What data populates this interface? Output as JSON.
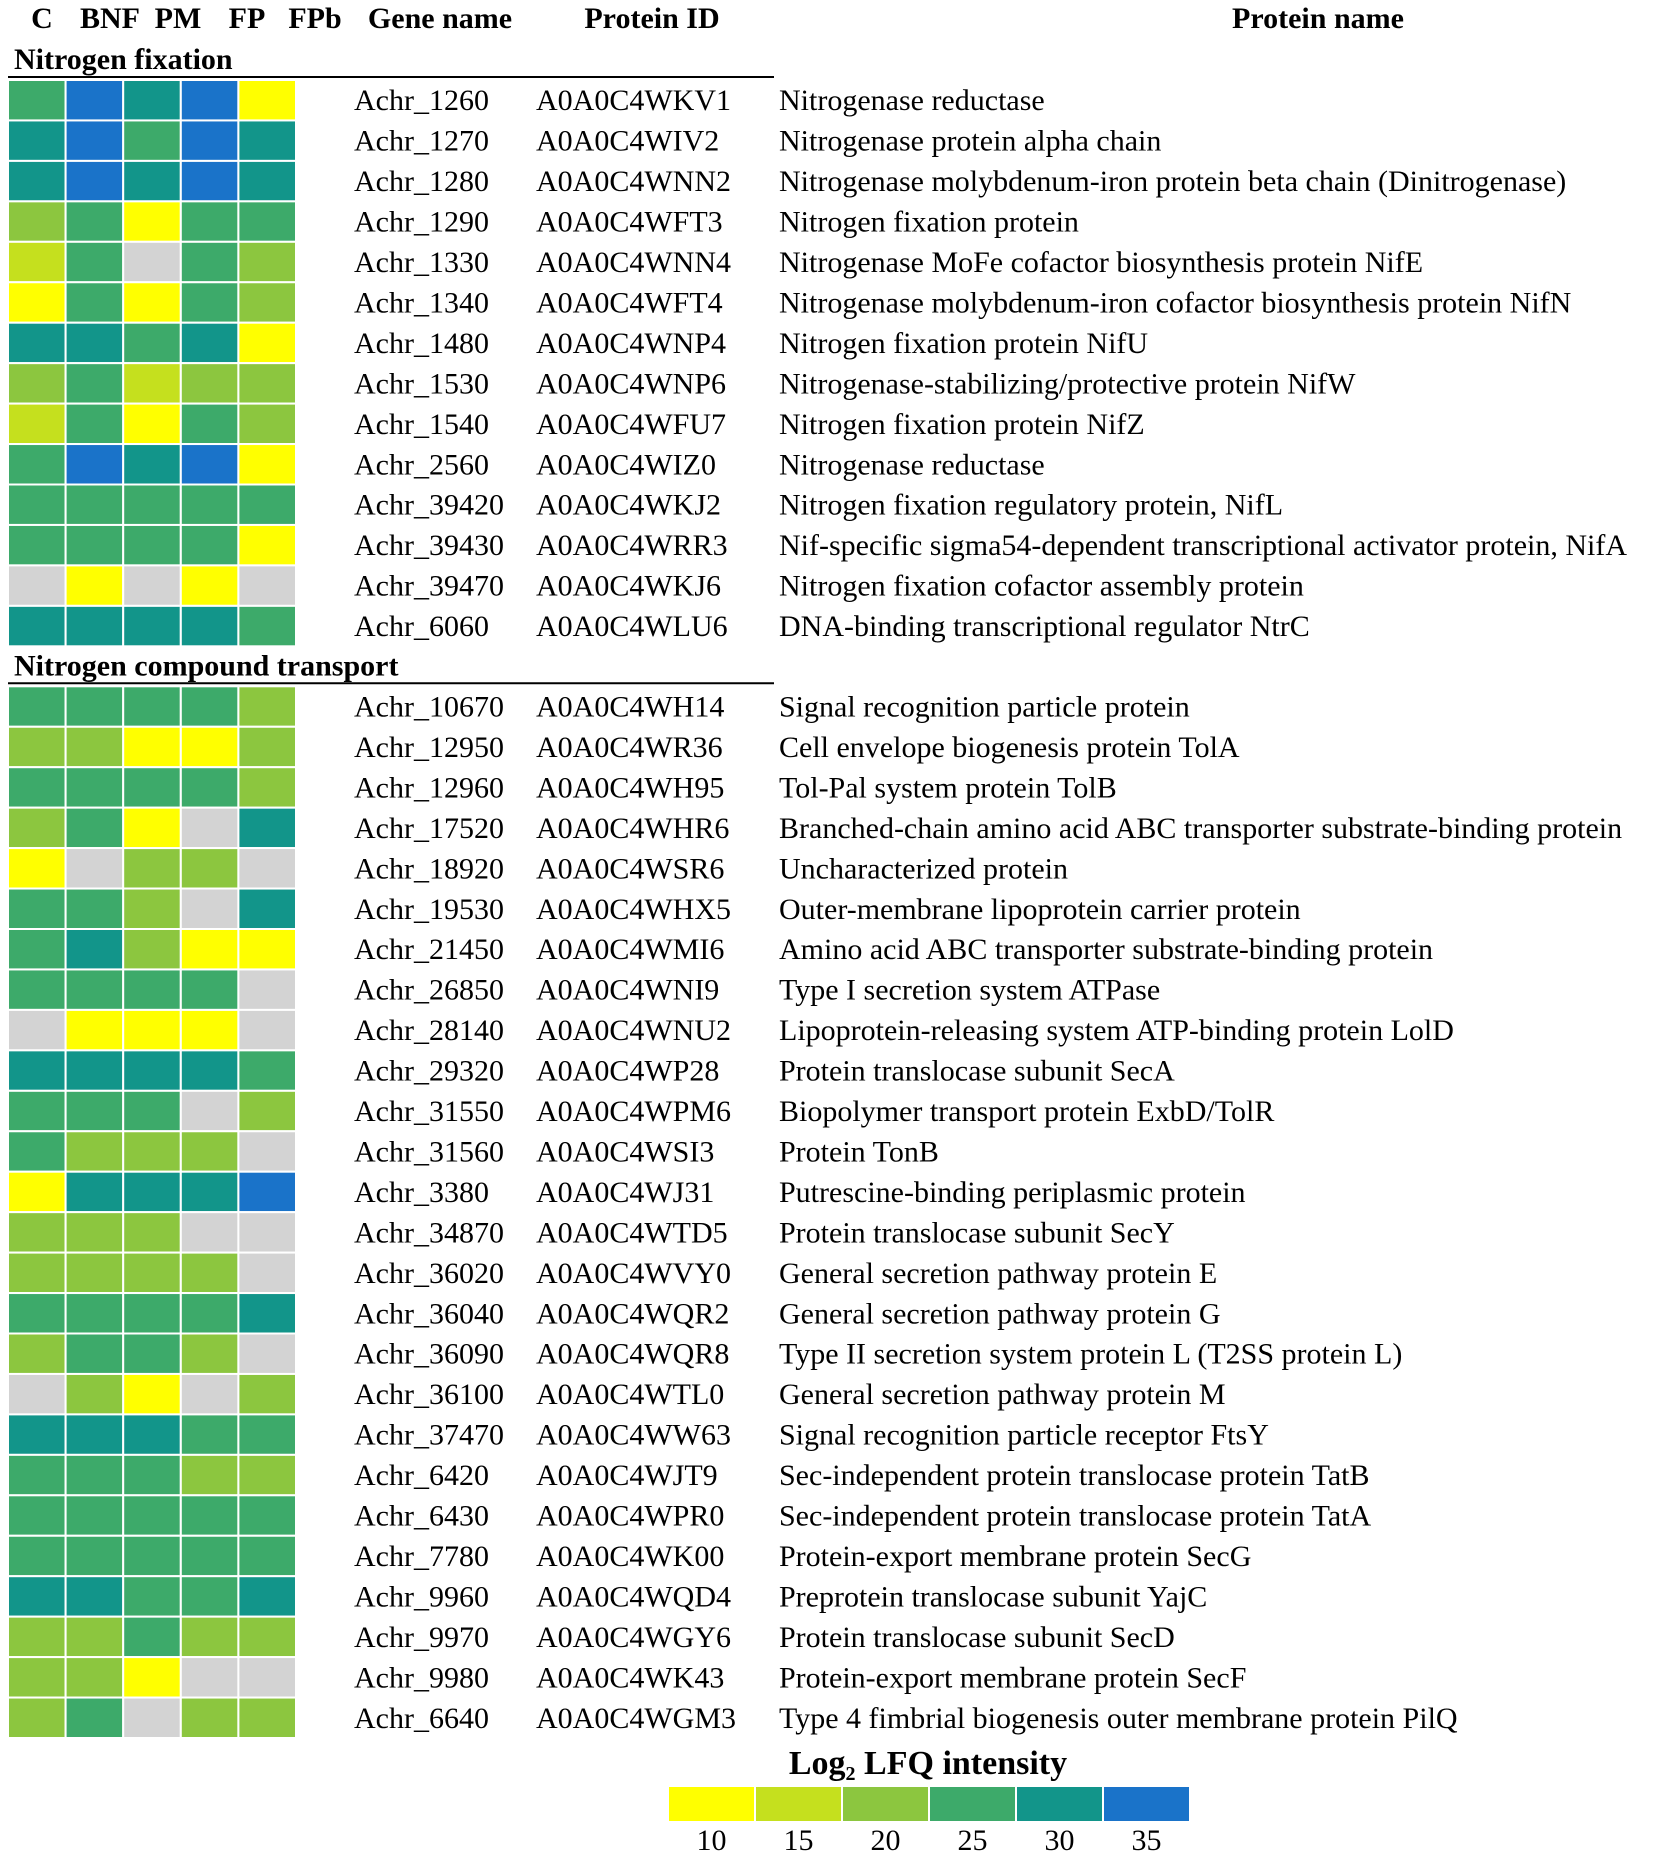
{
  "chart_data": {
    "type": "heatmap",
    "column_headers": {
      "samples": [
        "C",
        "BNF",
        "PM",
        "FP",
        "FPb"
      ],
      "gene": "Gene name",
      "protein_id": "Protein ID",
      "protein_name": "Protein name"
    },
    "value_unit": "Log2 LFQ intensity (approx.; null = not detected)",
    "sections": [
      {
        "title": "Nitrogen fixation",
        "rows": [
          {
            "gene": "Achr_1260",
            "protein_id": "A0A0C4WKV1",
            "protein_name": "Nitrogenase reductase",
            "values": [
              25,
              35,
              28,
              35,
              10
            ]
          },
          {
            "gene": "Achr_1270",
            "protein_id": "A0A0C4WIV2",
            "protein_name": "Nitrogenase protein alpha chain",
            "values": [
              28,
              35,
              27,
              35,
              30
            ]
          },
          {
            "gene": "Achr_1280",
            "protein_id": "A0A0C4WNN2",
            "protein_name": "Nitrogenase molybdenum-iron protein beta chain (Dinitrogenase)",
            "values": [
              29,
              35,
              29,
              35,
              30
            ]
          },
          {
            "gene": "Achr_1290",
            "protein_id": "A0A0C4WFT3",
            "protein_name": "Nitrogen fixation protein",
            "values": [
              21,
              23,
              10,
              23,
              26
            ]
          },
          {
            "gene": "Achr_1330",
            "protein_id": "A0A0C4WNN4",
            "protein_name": "Nitrogenase MoFe cofactor biosynthesis protein NifE",
            "values": [
              17,
              24,
              null,
              23,
              21
            ]
          },
          {
            "gene": "Achr_1340",
            "protein_id": "A0A0C4WFT4",
            "protein_name": "Nitrogenase molybdenum-iron cofactor biosynthesis protein NifN",
            "values": [
              10,
              24,
              10,
              24,
              21
            ]
          },
          {
            "gene": "Achr_1480",
            "protein_id": "A0A0C4WNP4",
            "protein_name": "Nitrogen fixation protein NifU",
            "values": [
              29,
              30,
              26,
              31,
              10
            ]
          },
          {
            "gene": "Achr_1530",
            "protein_id": "A0A0C4WNP6",
            "protein_name": "Nitrogenase-stabilizing/protective protein NifW",
            "values": [
              21,
              23,
              17,
              22,
              21
            ]
          },
          {
            "gene": "Achr_1540",
            "protein_id": "A0A0C4WFU7",
            "protein_name": "Nitrogen fixation protein NifZ",
            "values": [
              15,
              24,
              10,
              24,
              21
            ]
          },
          {
            "gene": "Achr_2560",
            "protein_id": "A0A0C4WIZ0",
            "protein_name": "Nitrogenase reductase",
            "values": [
              25,
              35,
              29,
              35,
              10
            ]
          },
          {
            "gene": "Achr_39420",
            "protein_id": "A0A0C4WKJ2",
            "protein_name": "Nitrogen fixation regulatory protein, NifL",
            "values": [
              27,
              27,
              27,
              27,
              24
            ]
          },
          {
            "gene": "Achr_39430",
            "protein_id": "A0A0C4WRR3",
            "protein_name": "Nif-specific sigma54-dependent transcriptional activator protein, NifA",
            "values": [
              24,
              24,
              24,
              24,
              10
            ]
          },
          {
            "gene": "Achr_39470",
            "protein_id": "A0A0C4WKJ6",
            "protein_name": "Nitrogen fixation cofactor assembly protein",
            "values": [
              null,
              10,
              null,
              10,
              null
            ]
          },
          {
            "gene": "Achr_6060",
            "protein_id": "A0A0C4WLU6",
            "protein_name": "DNA-binding transcriptional regulator NtrC",
            "values": [
              28,
              28,
              28,
              28,
              27
            ]
          }
        ]
      },
      {
        "title": "Nitrogen compound transport",
        "rows": [
          {
            "gene": "Achr_10670",
            "protein_id": "A0A0C4WH14",
            "protein_name": "Signal recognition particle protein",
            "values": [
              27,
              27,
              27,
              26,
              22
            ]
          },
          {
            "gene": "Achr_12950",
            "protein_id": "A0A0C4WR36",
            "protein_name": "Cell envelope biogenesis protein TolA",
            "values": [
              20,
              21,
              10,
              10,
              21
            ]
          },
          {
            "gene": "Achr_12960",
            "protein_id": "A0A0C4WH95",
            "protein_name": "Tol-Pal system protein TolB",
            "values": [
              26,
              27,
              24,
              24,
              22
            ]
          },
          {
            "gene": "Achr_17520",
            "protein_id": "A0A0C4WHR6",
            "protein_name": "Branched-chain amino acid ABC transporter substrate-binding protein",
            "values": [
              21,
              24,
              10,
              null,
              30
            ]
          },
          {
            "gene": "Achr_18920",
            "protein_id": "A0A0C4WSR6",
            "protein_name": "Uncharacterized protein",
            "values": [
              10,
              null,
              21,
              21,
              null
            ]
          },
          {
            "gene": "Achr_19530",
            "protein_id": "A0A0C4WHX5",
            "protein_name": "Outer-membrane lipoprotein carrier protein",
            "values": [
              25,
              23,
              22,
              null,
              28
            ]
          },
          {
            "gene": "Achr_21450",
            "protein_id": "A0A0C4WMI6",
            "protein_name": "Amino acid ABC transporter substrate-binding protein",
            "values": [
              24,
              30,
              21,
              10,
              10
            ]
          },
          {
            "gene": "Achr_26850",
            "protein_id": "A0A0C4WNI9",
            "protein_name": "Type I secretion system ATPase",
            "values": [
              23,
              23,
              23,
              24,
              null
            ]
          },
          {
            "gene": "Achr_28140",
            "protein_id": "A0A0C4WNU2",
            "protein_name": "Lipoprotein-releasing system ATP-binding protein LolD",
            "values": [
              null,
              10,
              10,
              10,
              null
            ]
          },
          {
            "gene": "Achr_29320",
            "protein_id": "A0A0C4WP28",
            "protein_name": "Protein translocase subunit SecA",
            "values": [
              29,
              29,
              28,
              29,
              26
            ]
          },
          {
            "gene": "Achr_31550",
            "protein_id": "A0A0C4WPM6",
            "protein_name": "Biopolymer transport protein ExbD/TolR",
            "values": [
              25,
              23,
              23,
              null,
              21
            ]
          },
          {
            "gene": "Achr_31560",
            "protein_id": "A0A0C4WSI3",
            "protein_name": "Protein TonB",
            "values": [
              24,
              22,
              22,
              22,
              null
            ]
          },
          {
            "gene": "Achr_3380",
            "protein_id": "A0A0C4WJ31",
            "protein_name": "Putrescine-binding periplasmic protein",
            "values": [
              10,
              30,
              30,
              30,
              34
            ]
          },
          {
            "gene": "Achr_34870",
            "protein_id": "A0A0C4WTD5",
            "protein_name": "Protein translocase subunit SecY",
            "values": [
              22,
              22,
              22,
              null,
              null
            ]
          },
          {
            "gene": "Achr_36020",
            "protein_id": "A0A0C4WVY0",
            "protein_name": "General secretion pathway protein E",
            "values": [
              20,
              21,
              21,
              20,
              null
            ]
          },
          {
            "gene": "Achr_36040",
            "protein_id": "A0A0C4WQR2",
            "protein_name": "General secretion pathway protein G",
            "values": [
              27,
              26,
              24,
              24,
              28
            ]
          },
          {
            "gene": "Achr_36090",
            "protein_id": "A0A0C4WQR8",
            "protein_name": "Type II secretion system protein L (T2SS protein L)",
            "values": [
              22,
              23,
              23,
              22,
              null
            ]
          },
          {
            "gene": "Achr_36100",
            "protein_id": "A0A0C4WTL0",
            "protein_name": "General secretion pathway protein M",
            "values": [
              null,
              18,
              10,
              null,
              18
            ]
          },
          {
            "gene": "Achr_37470",
            "protein_id": "A0A0C4WW63",
            "protein_name": "Signal recognition particle receptor FtsY",
            "values": [
              29,
              28,
              28,
              27,
              27
            ]
          },
          {
            "gene": "Achr_6420",
            "protein_id": "A0A0C4WJT9",
            "protein_name": "Sec-independent protein translocase protein TatB",
            "values": [
              24,
              23,
              23,
              22,
              22
            ]
          },
          {
            "gene": "Achr_6430",
            "protein_id": "A0A0C4WPR0",
            "protein_name": "Sec-independent protein translocase protein TatA",
            "values": [
              26,
              25,
              25,
              24,
              23
            ]
          },
          {
            "gene": "Achr_7780",
            "protein_id": "A0A0C4WK00",
            "protein_name": "Protein-export membrane protein SecG",
            "values": [
              27,
              27,
              27,
              27,
              27
            ]
          },
          {
            "gene": "Achr_9960",
            "protein_id": "A0A0C4WQD4",
            "protein_name": "Preprotein translocase subunit YajC",
            "values": [
              29,
              28,
              27,
              27,
              29
            ]
          },
          {
            "gene": "Achr_9970",
            "protein_id": "A0A0C4WGY6",
            "protein_name": "Protein translocase subunit SecD",
            "values": [
              22,
              22,
              23,
              21,
              22
            ]
          },
          {
            "gene": "Achr_9980",
            "protein_id": "A0A0C4WK43",
            "protein_name": "Protein-export membrane protein SecF",
            "values": [
              21,
              22,
              10,
              null,
              null
            ]
          },
          {
            "gene": "Achr_6640",
            "protein_id": "A0A0C4WGM3",
            "protein_name": "Type 4 fimbrial biogenesis outer membrane protein PilQ",
            "values": [
              20,
              26,
              null,
              21,
              21
            ]
          }
        ]
      }
    ],
    "legend": {
      "title_prefix": "Log",
      "title_sub": "2",
      "title_rest": " LFQ intensity",
      "ticks": [
        "10",
        "15",
        "20",
        "25",
        "30",
        "35"
      ],
      "range": [
        10,
        35
      ],
      "color_stops": [
        {
          "value": 10,
          "color": "#ffff00"
        },
        {
          "value": 15,
          "color": "#c5e01e"
        },
        {
          "value": 20,
          "color": "#8cc63f"
        },
        {
          "value": 25,
          "color": "#3daa6a"
        },
        {
          "value": 30,
          "color": "#12958a"
        },
        {
          "value": 35,
          "color": "#1a73c9"
        }
      ],
      "missing_color": "#d3d3d3"
    }
  }
}
